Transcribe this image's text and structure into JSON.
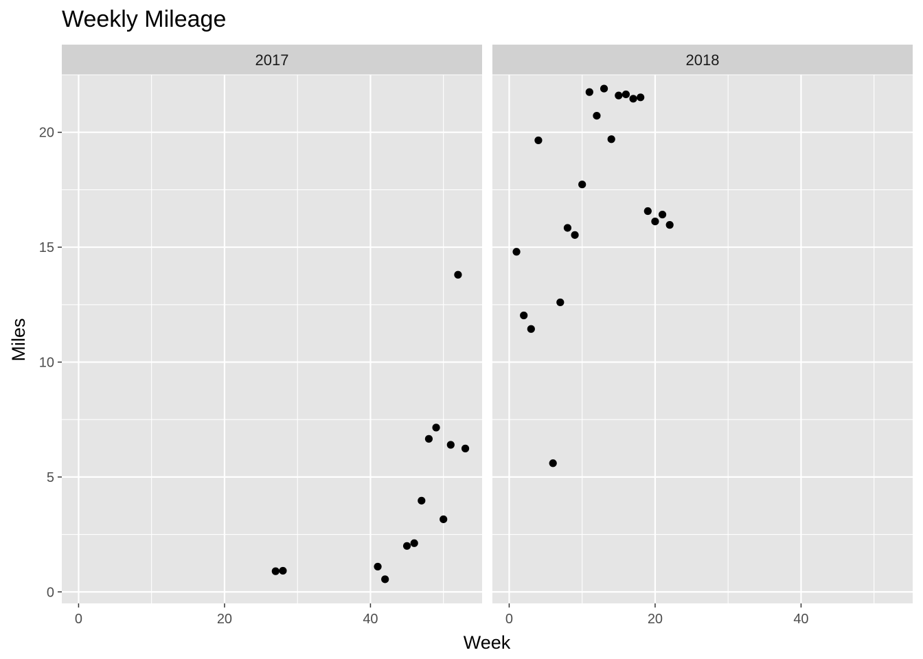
{
  "chart_data": {
    "type": "scatter",
    "title": "Weekly Mileage",
    "xlabel": "Week",
    "ylabel": "Miles",
    "xlim": [
      -2.3,
      55.3
    ],
    "ylim": [
      -0.5,
      22.5
    ],
    "x_ticks": [
      0,
      20,
      40
    ],
    "y_ticks": [
      0,
      5,
      10,
      15,
      20
    ],
    "x_tick_labels": [
      "0",
      "20",
      "40"
    ],
    "y_tick_labels": [
      "0",
      "5",
      "10",
      "15",
      "20"
    ],
    "grid": true,
    "point_color": "#000000",
    "panel_background": "#e5e5e5",
    "strip_background": "#d1d1d1",
    "facets": [
      {
        "label": "2017",
        "points": [
          {
            "x": 27,
            "y": 0.9
          },
          {
            "x": 28,
            "y": 0.92
          },
          {
            "x": 41,
            "y": 1.1
          },
          {
            "x": 42,
            "y": 0.55
          },
          {
            "x": 45,
            "y": 2.0
          },
          {
            "x": 46,
            "y": 2.12
          },
          {
            "x": 47,
            "y": 3.97
          },
          {
            "x": 48,
            "y": 6.66
          },
          {
            "x": 49,
            "y": 7.15
          },
          {
            "x": 50,
            "y": 3.16
          },
          {
            "x": 51,
            "y": 6.4
          },
          {
            "x": 52,
            "y": 13.8
          },
          {
            "x": 53,
            "y": 6.24
          }
        ]
      },
      {
        "label": "2018",
        "points": [
          {
            "x": 1,
            "y": 14.8
          },
          {
            "x": 2,
            "y": 12.03
          },
          {
            "x": 3,
            "y": 11.44
          },
          {
            "x": 4,
            "y": 19.65
          },
          {
            "x": 6,
            "y": 5.6
          },
          {
            "x": 7,
            "y": 12.6
          },
          {
            "x": 8,
            "y": 15.84
          },
          {
            "x": 9,
            "y": 15.53
          },
          {
            "x": 10,
            "y": 17.73
          },
          {
            "x": 11,
            "y": 21.75
          },
          {
            "x": 12,
            "y": 20.72
          },
          {
            "x": 13,
            "y": 21.9
          },
          {
            "x": 14,
            "y": 19.7
          },
          {
            "x": 15,
            "y": 21.6
          },
          {
            "x": 16,
            "y": 21.65
          },
          {
            "x": 17,
            "y": 21.46
          },
          {
            "x": 18,
            "y": 21.52
          },
          {
            "x": 19,
            "y": 16.57
          },
          {
            "x": 20,
            "y": 16.12
          },
          {
            "x": 21,
            "y": 16.42
          },
          {
            "x": 22,
            "y": 15.97
          }
        ]
      }
    ]
  }
}
